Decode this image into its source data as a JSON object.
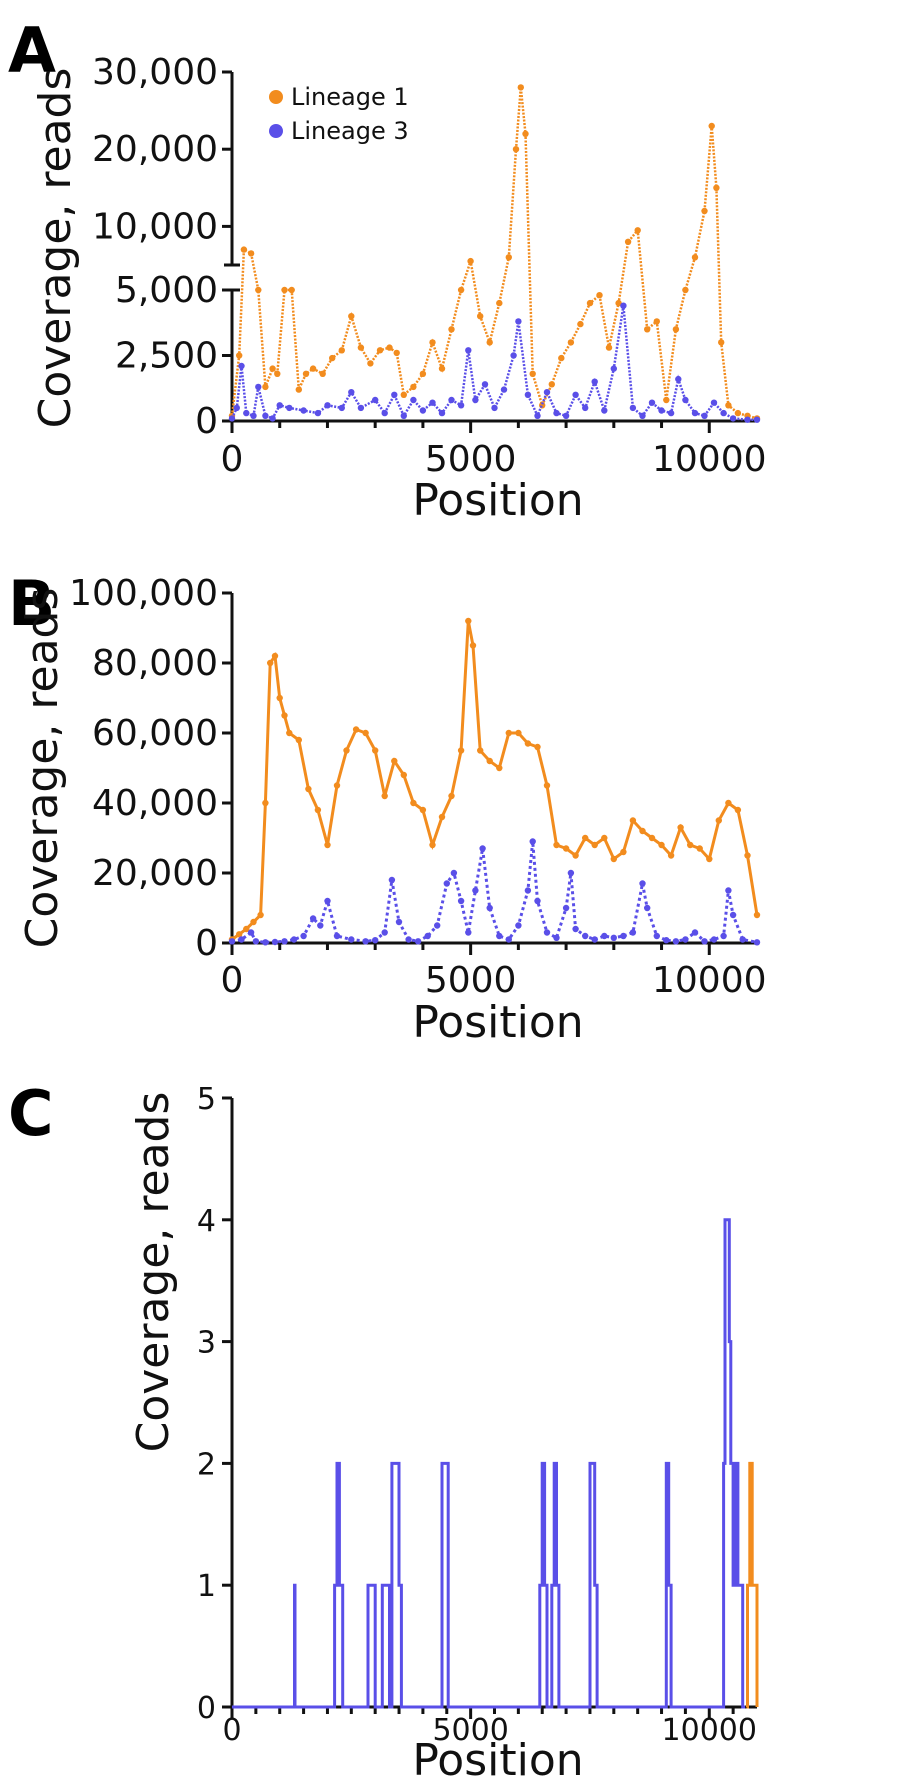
{
  "colors": {
    "lineage1": "#F28C1E",
    "lineage3": "#5A4FE8"
  },
  "legend": [
    {
      "label": "Lineage 1",
      "color_key": "lineage1"
    },
    {
      "label": "Lineage 3",
      "color_key": "lineage3"
    }
  ],
  "chart_data": [
    {
      "panel": "A",
      "type": "scatter",
      "xlabel": "Position",
      "ylabel": "Coverage, reads",
      "xlim": [
        0,
        11000
      ],
      "x_ticks": [
        0,
        5000,
        10000
      ],
      "x_tick_labels": [
        "0",
        "5000",
        "10000"
      ],
      "y_axis_broken": true,
      "y_lower_range": [
        0,
        5000
      ],
      "y_lower_ticks": [
        0,
        2500,
        5000
      ],
      "y_lower_tick_labels": [
        "0",
        "2,500",
        "5,000"
      ],
      "y_upper_range": [
        5000,
        30000
      ],
      "y_upper_ticks": [
        10000,
        20000,
        30000
      ],
      "y_upper_tick_labels": [
        "10,000",
        "20,000",
        "30,000"
      ],
      "series": [
        {
          "name": "Lineage 1",
          "color_key": "lineage1",
          "x": [
            0,
            150,
            250,
            400,
            550,
            700,
            850,
            950,
            1100,
            1250,
            1400,
            1550,
            1700,
            1900,
            2100,
            2300,
            2500,
            2700,
            2900,
            3100,
            3300,
            3450,
            3600,
            3800,
            4000,
            4200,
            4400,
            4600,
            4800,
            5000,
            5200,
            5400,
            5600,
            5800,
            5950,
            6050,
            6150,
            6300,
            6500,
            6700,
            6900,
            7100,
            7300,
            7500,
            7700,
            7900,
            8100,
            8300,
            8500,
            8700,
            8900,
            9100,
            9300,
            9500,
            9700,
            9900,
            10050,
            10150,
            10250,
            10400,
            10600,
            10800,
            11000
          ],
          "y": [
            200,
            2500,
            7000,
            6500,
            5000,
            1300,
            2000,
            1800,
            5000,
            5000,
            1200,
            1800,
            2000,
            1800,
            2400,
            2700,
            4000,
            2800,
            2200,
            2700,
            2800,
            2600,
            1000,
            1300,
            1800,
            3000,
            2000,
            3500,
            5000,
            5500,
            4000,
            3000,
            4500,
            6000,
            20000,
            28000,
            22000,
            1800,
            600,
            1400,
            2400,
            3000,
            3700,
            4500,
            4800,
            2800,
            4500,
            8000,
            9500,
            3500,
            3800,
            800,
            3500,
            5000,
            6000,
            12000,
            23000,
            15000,
            3000,
            600,
            300,
            200,
            100
          ]
        },
        {
          "name": "Lineage 3",
          "color_key": "lineage3",
          "x": [
            0,
            100,
            200,
            300,
            450,
            550,
            700,
            850,
            1000,
            1200,
            1500,
            1800,
            2000,
            2300,
            2500,
            2700,
            3000,
            3200,
            3400,
            3600,
            3800,
            4000,
            4200,
            4400,
            4600,
            4800,
            4950,
            5100,
            5300,
            5500,
            5700,
            5900,
            6000,
            6200,
            6400,
            6600,
            6800,
            7000,
            7200,
            7400,
            7600,
            7800,
            8000,
            8200,
            8400,
            8600,
            8800,
            9000,
            9200,
            9350,
            9500,
            9700,
            9900,
            10100,
            10300,
            10500,
            10800,
            11000
          ],
          "y": [
            100,
            500,
            2100,
            300,
            200,
            1300,
            200,
            100,
            600,
            500,
            400,
            300,
            600,
            500,
            1100,
            500,
            800,
            300,
            1000,
            200,
            800,
            400,
            700,
            300,
            800,
            600,
            2700,
            800,
            1400,
            500,
            1200,
            2500,
            3800,
            1000,
            200,
            1100,
            300,
            200,
            1000,
            500,
            1500,
            400,
            2000,
            4400,
            500,
            200,
            700,
            400,
            300,
            1600,
            800,
            300,
            200,
            700,
            300,
            100,
            50,
            50
          ]
        }
      ]
    },
    {
      "panel": "B",
      "type": "scatter",
      "xlabel": "Position",
      "ylabel": "Coverage, reads",
      "xlim": [
        0,
        11000
      ],
      "ylim": [
        0,
        100000
      ],
      "x_ticks": [
        0,
        5000,
        10000
      ],
      "x_tick_labels": [
        "0",
        "5000",
        "10000"
      ],
      "y_ticks": [
        0,
        20000,
        40000,
        60000,
        80000,
        100000
      ],
      "y_tick_labels": [
        "0",
        "20,000",
        "40,000",
        "60,000",
        "80,000",
        "100,000"
      ],
      "series": [
        {
          "name": "Lineage 1",
          "color_key": "lineage1",
          "x": [
            0,
            150,
            300,
            450,
            600,
            700,
            800,
            900,
            1000,
            1100,
            1200,
            1400,
            1600,
            1800,
            2000,
            2200,
            2400,
            2600,
            2800,
            3000,
            3200,
            3400,
            3600,
            3800,
            4000,
            4200,
            4400,
            4600,
            4800,
            4950,
            5050,
            5200,
            5400,
            5600,
            5800,
            6000,
            6200,
            6400,
            6600,
            6800,
            7000,
            7200,
            7400,
            7600,
            7800,
            8000,
            8200,
            8400,
            8600,
            8800,
            9000,
            9200,
            9400,
            9600,
            9800,
            10000,
            10200,
            10400,
            10600,
            10800,
            11000
          ],
          "y": [
            1000,
            2500,
            4000,
            6000,
            8000,
            40000,
            80000,
            82000,
            70000,
            65000,
            60000,
            58000,
            44000,
            38000,
            28000,
            45000,
            55000,
            61000,
            60000,
            55000,
            42000,
            52000,
            48000,
            40000,
            38000,
            28000,
            36000,
            42000,
            55000,
            92000,
            85000,
            55000,
            52000,
            50000,
            60000,
            60000,
            57000,
            56000,
            45000,
            28000,
            27000,
            25000,
            30000,
            28000,
            30000,
            24000,
            26000,
            35000,
            32000,
            30000,
            28000,
            25000,
            33000,
            28000,
            27000,
            24000,
            35000,
            40000,
            38000,
            25000,
            8000
          ]
        },
        {
          "name": "Lineage 3",
          "color_key": "lineage3",
          "x": [
            0,
            200,
            400,
            500,
            700,
            900,
            1100,
            1300,
            1500,
            1700,
            1850,
            2000,
            2200,
            2500,
            2800,
            3000,
            3200,
            3350,
            3500,
            3700,
            3900,
            4100,
            4300,
            4500,
            4650,
            4800,
            4950,
            5100,
            5250,
            5400,
            5600,
            5800,
            6000,
            6200,
            6300,
            6400,
            6600,
            6800,
            7000,
            7100,
            7200,
            7400,
            7600,
            7800,
            8000,
            8200,
            8400,
            8600,
            8700,
            8900,
            9100,
            9300,
            9500,
            9700,
            9900,
            10100,
            10300,
            10400,
            10500,
            10700,
            11000
          ],
          "y": [
            500,
            1000,
            3000,
            500,
            200,
            300,
            500,
            1000,
            2000,
            7000,
            5000,
            12000,
            2000,
            1000,
            500,
            800,
            3000,
            18000,
            6000,
            1000,
            500,
            2000,
            5000,
            17000,
            20000,
            12000,
            3000,
            15000,
            27000,
            10000,
            2000,
            1000,
            5000,
            15000,
            29000,
            12000,
            3000,
            1500,
            10000,
            20000,
            4000,
            2000,
            1000,
            2000,
            1500,
            2000,
            3000,
            17000,
            10000,
            2000,
            800,
            500,
            1000,
            3000,
            500,
            1000,
            2000,
            15000,
            8000,
            1000,
            200
          ]
        }
      ]
    },
    {
      "panel": "C",
      "type": "line",
      "xlabel": "Position",
      "ylabel": "Coverage, reads",
      "xlim": [
        0,
        11000
      ],
      "ylim": [
        0,
        5
      ],
      "x_ticks": [
        0,
        5000,
        10000
      ],
      "x_tick_labels": [
        "0",
        "5000",
        "10000"
      ],
      "y_ticks": [
        0,
        1,
        2,
        3,
        4,
        5
      ],
      "y_tick_labels": [
        "0",
        "1",
        "2",
        "3",
        "4",
        "5"
      ],
      "series": [
        {
          "name": "Lineage 1",
          "color_key": "lineage1",
          "x": [
            10780,
            10800,
            10850,
            10900,
            10950,
            11000
          ],
          "y": [
            0,
            1,
            2,
            1,
            1,
            0
          ]
        },
        {
          "name": "Lineage 3",
          "color_key": "lineage3",
          "x": [
            0,
            1300,
            1310,
            1320,
            2100,
            2150,
            2200,
            2250,
            2320,
            2380,
            2800,
            2850,
            2950,
            3000,
            3100,
            3150,
            3250,
            3300,
            3350,
            3450,
            3500,
            3550,
            4350,
            4400,
            4480,
            4530,
            6400,
            6450,
            6500,
            6550,
            6600,
            6700,
            6750,
            6800,
            6850,
            7450,
            7500,
            7550,
            7600,
            7650,
            9050,
            9100,
            9150,
            9200,
            10280,
            10300,
            10330,
            10380,
            10420,
            10450,
            10500,
            10550,
            10600,
            10650,
            10700,
            10750
          ],
          "y": [
            0,
            0,
            1,
            0,
            0,
            1,
            2,
            1,
            0,
            0,
            0,
            1,
            1,
            0,
            0,
            1,
            1,
            0,
            2,
            2,
            1,
            0,
            0,
            2,
            2,
            0,
            0,
            1,
            2,
            1,
            0,
            1,
            2,
            1,
            0,
            0,
            2,
            2,
            1,
            0,
            0,
            2,
            1,
            0,
            0,
            2,
            4,
            4,
            3,
            2,
            1,
            2,
            1,
            1,
            0,
            0
          ]
        }
      ]
    }
  ]
}
